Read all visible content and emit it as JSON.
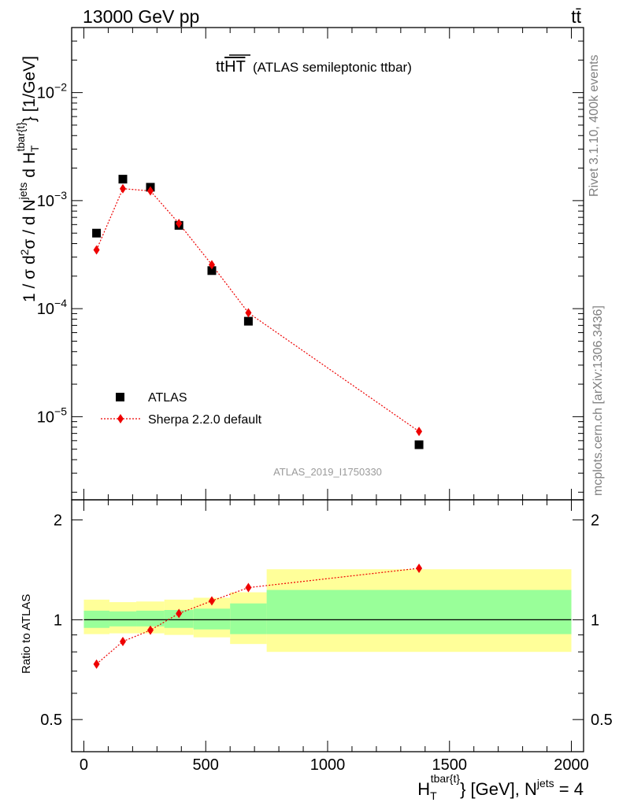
{
  "header": {
    "left": "13000 GeV pp",
    "right": "tt̄"
  },
  "side_texts": {
    "rivet": "Rivet 3.1.10,  400k events",
    "mcplots": "mcplots.cern.ch [arXiv:1306.3436]"
  },
  "plot_title": {
    "main": "tt",
    "overline": "HT",
    "suffix": "(ATLAS semileptonic ttbar)"
  },
  "analysis_id": "ATLAS_2019_I1750330",
  "y_axis_label": {
    "part1": "1 / σ d",
    "sup2": "2",
    "part2": "σ /  d N",
    "sup_jets": "jets",
    "part3": " d H",
    "sub_T": "T",
    "sup_tbar": "tbar{t}",
    "part4": "} [1/GeV]"
  },
  "ratio_y_label": "Ratio to ATLAS",
  "x_axis_label": {
    "H": "H",
    "sub_T": "T",
    "sup_tbar": "tbar{t}",
    "rest": "} [GeV], N",
    "sup_jets": "jets",
    "tail": " = 4"
  },
  "colors": {
    "data": "#000000",
    "mc": "#ee0000",
    "band_inner": "#99ff99",
    "band_outer": "#ffff99",
    "analysis_text": "#9a9a9a",
    "side_text": "#808080"
  },
  "chart_data": [
    {
      "type": "scatter",
      "panel": "main",
      "y_scale": "log",
      "xlim": [
        -50,
        2050
      ],
      "ylim": [
        1.7e-06,
        0.04
      ],
      "x_ticks": [
        0,
        500,
        1000,
        1500,
        2000
      ],
      "x_tick_labels": [
        "0",
        "500",
        "1000",
        "1500",
        "2000"
      ],
      "y_ticks": [
        1e-05,
        0.0001,
        0.001,
        0.01
      ],
      "y_tick_labels": [
        {
          "base": "10",
          "exp": "−5"
        },
        {
          "base": "10",
          "exp": "−4"
        },
        {
          "base": "10",
          "exp": "−3"
        },
        {
          "base": "10",
          "exp": "−2"
        }
      ],
      "legend_position": "bottom-left",
      "series": [
        {
          "name": "ATLAS",
          "marker": "square",
          "x": [
            52,
            160,
            273,
            390,
            525,
            675,
            1375
          ],
          "y": [
            0.0005,
            0.00158,
            0.00133,
            0.00059,
            0.000225,
            7.65e-05,
            5.5e-06
          ]
        },
        {
          "name": "Sherpa 2.2.0 default",
          "marker": "diamond",
          "line": "dotted",
          "x": [
            52,
            160,
            273,
            390,
            525,
            675,
            1375
          ],
          "y": [
            0.00035,
            0.00129,
            0.00123,
            0.000615,
            0.000255,
            9.15e-05,
            7.3e-06
          ]
        }
      ]
    },
    {
      "type": "scatter",
      "panel": "ratio",
      "y_scale": "log",
      "xlim": [
        -50,
        2050
      ],
      "ylim": [
        0.4,
        2.3
      ],
      "y_ticks": [
        0.5,
        1,
        2
      ],
      "y_tick_labels": [
        "0.5",
        "1",
        "2"
      ],
      "reference": 1,
      "bins": [
        0,
        105,
        215,
        330,
        450,
        600,
        750,
        2000
      ],
      "band_inner": [
        [
          0.945,
          1.065
        ],
        [
          0.955,
          1.06
        ],
        [
          0.955,
          1.065
        ],
        [
          0.945,
          1.07
        ],
        [
          0.935,
          1.08
        ],
        [
          0.905,
          1.12
        ],
        [
          0.905,
          1.23
        ]
      ],
      "band_outer": [
        [
          0.905,
          1.15
        ],
        [
          0.91,
          1.13
        ],
        [
          0.91,
          1.135
        ],
        [
          0.9,
          1.15
        ],
        [
          0.885,
          1.165
        ],
        [
          0.845,
          1.21
        ],
        [
          0.8,
          1.42
        ]
      ],
      "series": [
        {
          "name": "Sherpa 2.2.0 default",
          "x": [
            52,
            160,
            273,
            390,
            525,
            675,
            1375
          ],
          "y": [
            0.735,
            0.86,
            0.93,
            1.045,
            1.14,
            1.25,
            1.43
          ],
          "yerr": [
            0,
            0,
            0,
            0,
            0,
            0,
            0.03
          ]
        }
      ]
    }
  ]
}
